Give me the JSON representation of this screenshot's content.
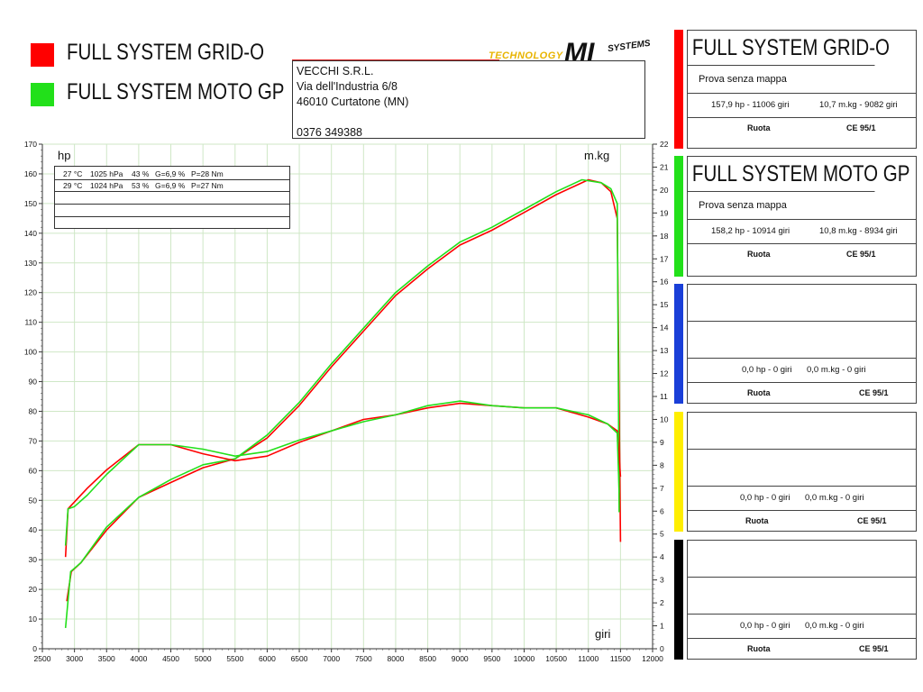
{
  "legend": [
    {
      "label": "FULL SYSTEM GRID-O",
      "color": "#ff0000"
    },
    {
      "label": "FULL SYSTEM MOTO GP",
      "color": "#22e01a"
    }
  ],
  "address": {
    "line1": "VECCHI S.R.L.",
    "line2": "Via dell'Industria 6/8",
    "line3": "46010 Curtatone (MN)",
    "line4": "",
    "phone": "0376 349388"
  },
  "logo": {
    "left_text": "TECHNOLOGY",
    "brand": "MI",
    "right_text": "SYSTEMS"
  },
  "panels": [
    {
      "color": "#ff0000",
      "title": "FULL SYSTEM GRID-O",
      "subtitle": "Prova senza mappa",
      "hp": "157,9 hp - 11006 giri",
      "torque": "10,7 m.kg - 9082 giri",
      "wheel": "Ruota",
      "norm": "CE 95/1"
    },
    {
      "color": "#22e01a",
      "title": "FULL SYSTEM MOTO GP",
      "subtitle": "Prova senza mappa",
      "hp": "158,2 hp - 10914 giri",
      "torque": "10,8 m.kg - 8934 giri",
      "wheel": "Ruota",
      "norm": "CE 95/1"
    },
    {
      "color": "#1a3fd8",
      "title": "",
      "subtitle": "",
      "hp": "0,0 hp - 0 giri",
      "torque": "0,0 m.kg - 0 giri",
      "wheel": "Ruota",
      "norm": "CE 95/1"
    },
    {
      "color": "#ffee00",
      "title": "",
      "subtitle": "",
      "hp": "0,0 hp - 0 giri",
      "torque": "0,0 m.kg - 0 giri",
      "wheel": "Ruota",
      "norm": "CE 95/1"
    },
    {
      "color": "#000000",
      "title": "",
      "subtitle": "",
      "hp": "0,0 hp - 0 giri",
      "torque": "0,0 m.kg - 0 giri",
      "wheel": "Ruota",
      "norm": "CE 95/1"
    }
  ],
  "conditions": [
    {
      "temp": "27 °C",
      "pressure": "1025 hPa",
      "humidity": "43 %",
      "g": "G=6,9 %",
      "p": "P=28 Nm"
    },
    {
      "temp": "29 °C",
      "pressure": "1024 hPa",
      "humidity": "53 %",
      "g": "G=6,9 %",
      "p": "P=27 Nm"
    }
  ],
  "chart_data": {
    "type": "line",
    "xlabel": "giri",
    "ylabel_left": "hp",
    "ylabel_right": "m.kg",
    "xlim": [
      2500,
      12000
    ],
    "ylim_left": [
      0,
      170
    ],
    "ylim_right": [
      0,
      22
    ],
    "x_ticks": [
      2500,
      3000,
      3500,
      4000,
      4500,
      5000,
      5500,
      6000,
      6500,
      7000,
      7500,
      8000,
      8500,
      9000,
      9500,
      10000,
      10500,
      11000,
      11500,
      12000
    ],
    "y_ticks_left": [
      0,
      10,
      20,
      30,
      40,
      50,
      60,
      70,
      80,
      90,
      100,
      110,
      120,
      130,
      140,
      150,
      160,
      170
    ],
    "y_ticks_right": [
      0,
      1,
      2,
      3,
      4,
      5,
      6,
      7,
      8,
      9,
      10,
      11,
      12,
      13,
      14,
      15,
      16,
      17,
      18,
      19,
      20,
      21,
      22
    ],
    "grid": true,
    "series": [
      {
        "name": "FULL SYSTEM GRID-O",
        "quantity": "hp",
        "color": "#ff0000",
        "x": [
          2880,
          2950,
          3100,
          3500,
          4000,
          4500,
          5000,
          5500,
          6000,
          6500,
          7000,
          7500,
          8000,
          8500,
          9000,
          9500,
          10000,
          10500,
          10800,
          11000,
          11200,
          11350,
          11450,
          11500
        ],
        "y": [
          16,
          26,
          29,
          40,
          51,
          56,
          61,
          64,
          71,
          82,
          95,
          107,
          119,
          128,
          136,
          141,
          147,
          153,
          156,
          158,
          157,
          154,
          145,
          36
        ]
      },
      {
        "name": "FULL SYSTEM MOTO GP",
        "quantity": "hp",
        "color": "#22e01a",
        "x": [
          2860,
          2940,
          3100,
          3500,
          4000,
          4500,
          5000,
          5500,
          6000,
          6500,
          7000,
          7500,
          8000,
          8500,
          9000,
          9500,
          10000,
          10500,
          10800,
          10900,
          11200,
          11350,
          11450,
          11480
        ],
        "y": [
          7,
          26,
          29,
          41,
          51,
          57,
          62,
          64,
          72,
          83,
          96,
          108,
          120,
          129,
          137,
          142,
          148,
          154,
          157,
          158,
          157,
          155,
          150,
          46
        ]
      },
      {
        "name": "FULL SYSTEM GRID-O",
        "quantity": "m.kg",
        "color": "#ff0000",
        "x": [
          2860,
          2900,
          3000,
          3200,
          3500,
          4000,
          4500,
          5000,
          5500,
          6000,
          6500,
          7000,
          7500,
          8000,
          8500,
          9000,
          9500,
          10000,
          10500,
          11000,
          11300,
          11450,
          11500
        ],
        "y": [
          4.0,
          6.1,
          6.4,
          7.0,
          7.8,
          8.9,
          8.9,
          8.5,
          8.2,
          8.4,
          9.0,
          9.5,
          10.0,
          10.2,
          10.5,
          10.7,
          10.6,
          10.5,
          10.5,
          10.1,
          9.8,
          9.5,
          7.5
        ]
      },
      {
        "name": "FULL SYSTEM MOTO GP",
        "quantity": "m.kg",
        "color": "#22e01a",
        "x": [
          2860,
          2900,
          3000,
          3200,
          3500,
          4000,
          4500,
          5000,
          5500,
          6000,
          6500,
          7000,
          7500,
          8000,
          8500,
          9000,
          9500,
          10000,
          10500,
          11000,
          11300,
          11450,
          11480
        ],
        "y": [
          4.5,
          6.1,
          6.2,
          6.7,
          7.6,
          8.9,
          8.9,
          8.7,
          8.4,
          8.6,
          9.1,
          9.5,
          9.9,
          10.2,
          10.6,
          10.8,
          10.6,
          10.5,
          10.5,
          10.2,
          9.8,
          9.4,
          6.8
        ]
      }
    ]
  }
}
